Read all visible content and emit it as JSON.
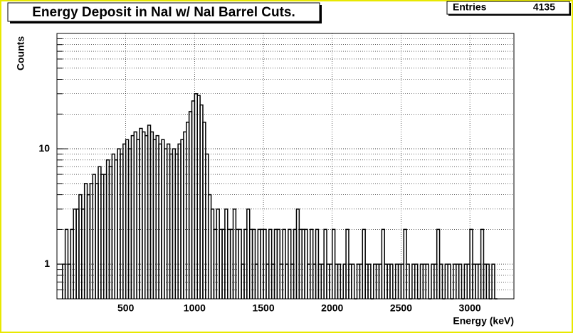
{
  "chart_data": {
    "type": "histogram",
    "title": "Energy Deposit in NaI w/ NaI Barrel Cuts.",
    "stats_label": "Entries",
    "stats_value": 4135,
    "xlabel": "Energy (keV)",
    "ylabel": "Counts",
    "color": "#000000",
    "log_y": true,
    "grid": true,
    "xlim": [
      0,
      3320
    ],
    "ylim": [
      0.5,
      100
    ],
    "xticks": [
      500,
      1000,
      1500,
      2000,
      2500,
      3000
    ],
    "yticks": [
      1,
      10
    ],
    "bins": [
      40,
      60,
      80,
      100,
      120,
      140,
      160,
      180,
      200,
      220,
      240,
      260,
      280,
      300,
      320,
      340,
      360,
      380,
      400,
      420,
      440,
      460,
      480,
      500,
      520,
      540,
      560,
      580,
      600,
      620,
      640,
      660,
      680,
      700,
      720,
      740,
      760,
      780,
      800,
      820,
      840,
      860,
      880,
      900,
      920,
      940,
      960,
      980,
      1000,
      1020,
      1040,
      1060,
      1080,
      1100,
      1120,
      1140,
      1160,
      1180,
      1200,
      1220,
      1240,
      1260,
      1280,
      1300,
      1320,
      1340,
      1360,
      1380,
      1400,
      1420,
      1440,
      1460,
      1480,
      1500,
      1520,
      1540,
      1560,
      1580,
      1600,
      1620,
      1640,
      1660,
      1680,
      1700,
      1720,
      1740,
      1760,
      1780,
      1800,
      1820,
      1840,
      1860,
      1880,
      1900,
      1920,
      1940,
      1960,
      1980,
      2000,
      2020,
      2040,
      2060,
      2080,
      2100,
      2120,
      2140,
      2160,
      2180,
      2200,
      2220,
      2240,
      2260,
      2280,
      2300,
      2320,
      2340,
      2360,
      2380,
      2400,
      2420,
      2440,
      2460,
      2480,
      2500,
      2520,
      2540,
      2560,
      2580,
      2600,
      2620,
      2640,
      2660,
      2680,
      2700,
      2720,
      2740,
      2760,
      2780,
      2800,
      2820,
      2840,
      2860,
      2880,
      2900,
      2920,
      2940,
      2960,
      2980,
      3000,
      3020,
      3040,
      3060,
      3080,
      3100,
      3120,
      3140,
      3160,
      3180,
      3200
    ],
    "values": [
      1,
      2,
      1,
      2,
      3,
      3,
      4,
      3,
      5,
      4,
      5,
      6,
      5,
      7,
      6,
      6,
      8,
      7,
      9,
      8,
      10,
      9,
      11,
      12,
      10,
      13,
      14,
      12,
      15,
      14,
      13,
      16,
      14,
      12,
      13,
      11,
      12,
      10,
      11,
      9,
      10,
      9,
      11,
      12,
      14,
      17,
      21,
      26,
      30,
      29,
      24,
      17,
      9,
      4,
      3,
      2,
      3,
      2,
      2,
      3,
      2,
      2,
      3,
      2,
      2,
      1,
      2,
      3,
      2,
      2,
      1,
      2,
      2,
      2,
      1,
      2,
      1,
      2,
      2,
      1,
      2,
      1,
      2,
      1,
      2,
      3,
      2,
      2,
      2,
      1,
      2,
      1,
      2,
      1,
      1,
      2,
      1,
      1,
      2,
      1,
      1,
      0,
      1,
      2,
      1,
      1,
      0,
      1,
      1,
      2,
      1,
      1,
      0,
      1,
      1,
      1,
      2,
      1,
      1,
      1,
      0,
      1,
      1,
      1,
      2,
      1,
      0,
      1,
      1,
      0,
      1,
      1,
      1,
      0,
      1,
      1,
      2,
      1,
      0,
      1,
      1,
      0,
      1,
      1,
      1,
      0,
      1,
      1,
      2,
      1,
      1,
      1,
      2,
      1,
      1,
      0,
      1,
      0
    ]
  }
}
